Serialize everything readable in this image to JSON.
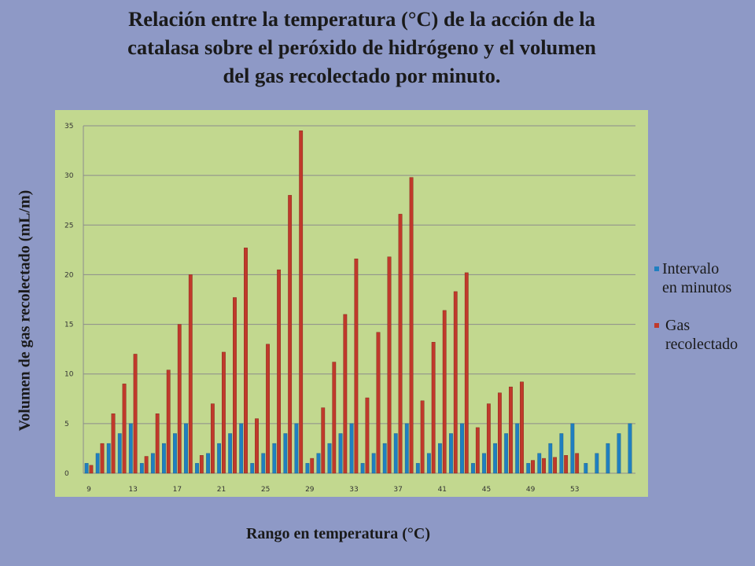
{
  "title_lines": [
    "Relación entre la temperatura (°C) de la acción de la",
    "catalasa sobre el peróxido de hidrógeno y el volumen",
    "del gas recolectado por minuto."
  ],
  "legend": {
    "intervalo": [
      "Intervalo",
      "en minutos"
    ],
    "gas": [
      "Gas",
      "recolectado"
    ]
  },
  "chart_data": {
    "type": "bar",
    "title": "Relación entre la temperatura (°C) de la acción de la catalasa sobre el peróxido de hidrógeno y el volumen del gas recolectado por minuto.",
    "xlabel": "Rango en temperatura (°C)",
    "ylabel": "Volumen de gas recolectado (mL/m)",
    "ylim": [
      0,
      35
    ],
    "yticks": [
      0,
      5,
      10,
      15,
      20,
      25,
      30,
      35
    ],
    "grid": true,
    "legend_position": "right",
    "categories": [
      9,
      10,
      11,
      12,
      13,
      14,
      15,
      16,
      17,
      18,
      19,
      20,
      21,
      22,
      23,
      24,
      25,
      26,
      27,
      28,
      29,
      30,
      31,
      32,
      33,
      34,
      35,
      36,
      37,
      38,
      39,
      40,
      41,
      42,
      43,
      44,
      45,
      46,
      47,
      48,
      49,
      50,
      51,
      52,
      53,
      54,
      55,
      56,
      57,
      58
    ],
    "xtick_labels": [
      "9",
      "13",
      "17",
      "21",
      "25",
      "29",
      "33",
      "37",
      "41",
      "45",
      "49",
      "53"
    ],
    "series": [
      {
        "name": "Intervalo en minutos",
        "color": "#1f7fc0",
        "values": [
          1,
          2,
          3,
          4,
          5,
          1,
          2,
          3,
          4,
          5,
          1,
          2,
          3,
          4,
          5,
          1,
          2,
          3,
          4,
          5,
          1,
          2,
          3,
          4,
          5,
          1,
          2,
          3,
          4,
          5,
          1,
          2,
          3,
          4,
          5,
          1,
          2,
          3,
          4,
          5,
          1,
          2,
          3,
          4,
          5,
          1,
          2,
          3,
          4,
          5
        ]
      },
      {
        "name": "Gas recolectado",
        "color": "#c0392b",
        "values": [
          0.8,
          3,
          6,
          9,
          12,
          1.7,
          6,
          10.4,
          15,
          20,
          1.8,
          7,
          12.2,
          17.7,
          22.7,
          5.5,
          13,
          20.5,
          28,
          34.5,
          1.5,
          6.6,
          11.2,
          16,
          21.6,
          7.6,
          14.2,
          21.8,
          26.1,
          29.8,
          7.3,
          13.2,
          16.4,
          18.3,
          20.2,
          4.6,
          7,
          8.1,
          8.7,
          9.2,
          1.3,
          1.5,
          1.6,
          1.8,
          2,
          null,
          null,
          null,
          null,
          null
        ]
      }
    ]
  }
}
